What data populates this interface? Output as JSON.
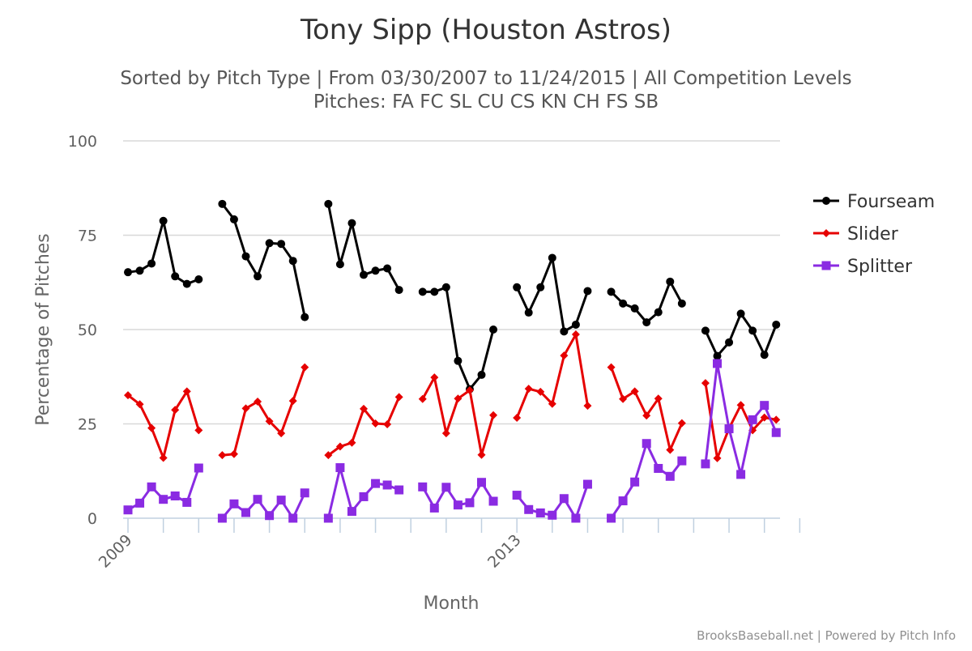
{
  "chart_data": {
    "type": "line",
    "title": "Tony Sipp (Houston Astros)",
    "subtitle_line1": "Sorted by Pitch Type | From 03/30/2007 to 11/24/2015 | All Competition Levels",
    "subtitle_line2": "Pitches: FA FC SL CU CS KN CH FS SB",
    "xlabel": "Month",
    "ylabel": "Percentage of Pitches",
    "ylim": [
      0,
      100
    ],
    "yticks": [
      0,
      25,
      50,
      75,
      100
    ],
    "xtick_labels": [
      {
        "label": "2009",
        "index": 0
      },
      {
        "label": "2013",
        "index": 33
      }
    ],
    "x_slots": 58,
    "grid": true,
    "legend_position": "right",
    "series": [
      {
        "name": "Fourseam",
        "color": "#000000",
        "marker": "circle",
        "values": [
          65.2,
          65.6,
          67.5,
          78.8,
          64.1,
          62.1,
          63.3,
          null,
          83.3,
          79.2,
          69.4,
          64.1,
          72.9,
          72.7,
          68.2,
          53.3,
          null,
          83.3,
          67.3,
          78.2,
          64.5,
          65.6,
          66.2,
          60.5,
          null,
          60.0,
          60.0,
          61.2,
          41.7,
          34.2,
          38.0,
          50.0,
          null,
          61.2,
          54.5,
          61.2,
          69.0,
          49.5,
          51.3,
          60.2,
          null,
          60.0,
          56.9,
          55.6,
          51.9,
          54.6,
          62.7,
          56.9,
          null,
          49.7,
          43.0,
          46.6,
          54.2,
          49.7,
          43.3,
          51.3
        ]
      },
      {
        "name": "Slider",
        "color": "#e60000",
        "marker": "diamond",
        "values": [
          32.6,
          30.2,
          23.9,
          16.0,
          28.7,
          33.6,
          23.3,
          null,
          16.7,
          17.0,
          29.1,
          30.9,
          25.7,
          22.5,
          31.1,
          40.0,
          null,
          16.7,
          19.0,
          20.0,
          29.0,
          25.1,
          24.9,
          32.1,
          null,
          31.6,
          37.3,
          22.5,
          31.7,
          33.9,
          16.8,
          27.3,
          null,
          26.6,
          34.3,
          33.5,
          30.3,
          43.1,
          48.7,
          29.8,
          null,
          40.0,
          31.6,
          33.6,
          27.2,
          31.7,
          18.1,
          25.2,
          null,
          35.8,
          15.9,
          23.8,
          30.0,
          23.3,
          26.7,
          26.1
        ]
      },
      {
        "name": "Splitter",
        "color": "#8a2be2",
        "marker": "square",
        "values": [
          2.2,
          4.0,
          8.3,
          5.0,
          5.9,
          4.2,
          13.3,
          null,
          0.0,
          3.8,
          1.5,
          5.0,
          0.7,
          4.8,
          0.0,
          6.7,
          null,
          0.0,
          13.4,
          1.8,
          5.7,
          9.2,
          8.8,
          7.5,
          null,
          8.3,
          2.7,
          8.2,
          3.5,
          4.1,
          9.5,
          4.5,
          null,
          6.1,
          2.3,
          1.4,
          0.8,
          5.2,
          0.0,
          9.0,
          null,
          0.0,
          4.6,
          9.6,
          19.8,
          13.2,
          11.1,
          15.2,
          null,
          14.4,
          41.0,
          23.7,
          11.6,
          26.1,
          29.9,
          22.7
        ]
      }
    ]
  },
  "credits": "BrooksBaseball.net | Powered by Pitch Info"
}
